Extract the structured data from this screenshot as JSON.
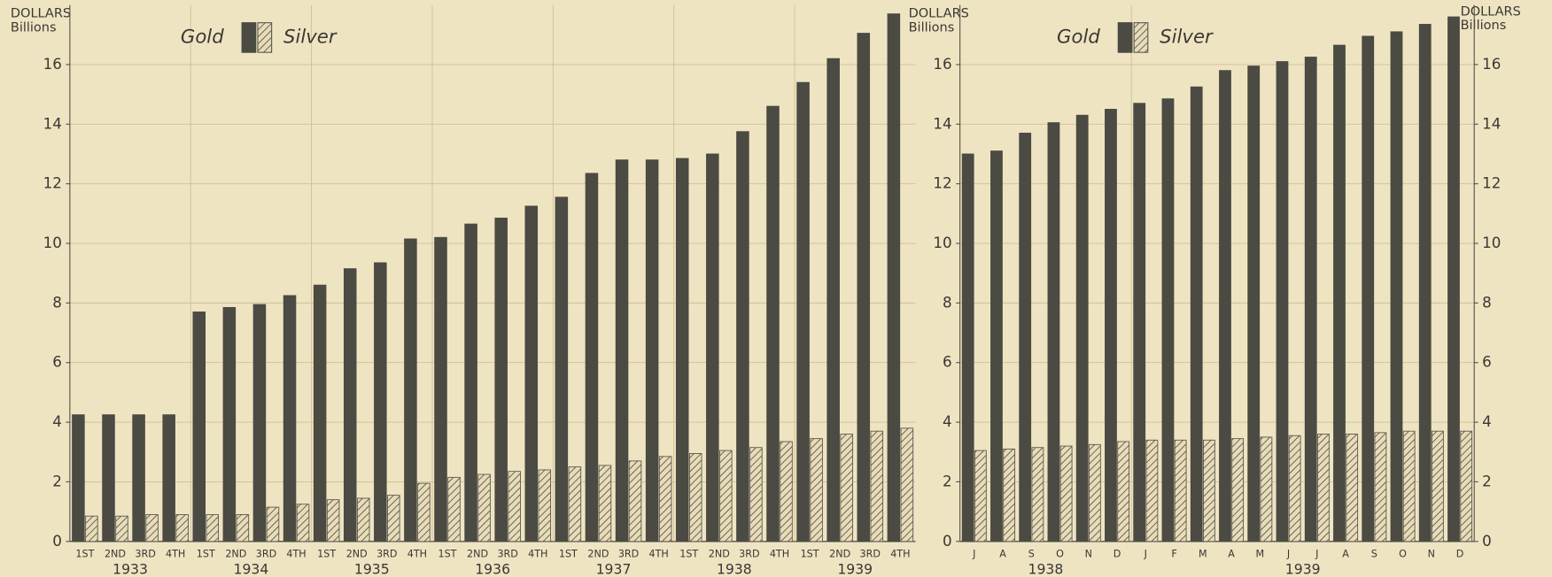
{
  "chart_data": [
    {
      "type": "bar",
      "y_label": [
        "DOLLARS",
        "Billions"
      ],
      "ylim": [
        0,
        18
      ],
      "yticks": [
        0,
        2,
        4,
        6,
        8,
        10,
        12,
        14,
        16
      ],
      "grid": true,
      "groups": [
        {
          "label": "1933",
          "categories": [
            "1ST",
            "2ND",
            "3RD",
            "4TH"
          ]
        },
        {
          "label": "1934",
          "categories": [
            "1ST",
            "2ND",
            "3RD",
            "4TH"
          ]
        },
        {
          "label": "1935",
          "categories": [
            "1ST",
            "2ND",
            "3RD",
            "4TH"
          ]
        },
        {
          "label": "1936",
          "categories": [
            "1ST",
            "2ND",
            "3RD",
            "4TH"
          ]
        },
        {
          "label": "1937",
          "categories": [
            "1ST",
            "2ND",
            "3RD",
            "4TH"
          ]
        },
        {
          "label": "1938",
          "categories": [
            "1ST",
            "2ND",
            "3RD",
            "4TH"
          ]
        },
        {
          "label": "1939",
          "categories": [
            "1ST",
            "2ND",
            "3RD",
            "4TH"
          ]
        }
      ],
      "series": [
        {
          "name": "Gold",
          "color": "#4b4a43",
          "pattern": "solid",
          "values": [
            4.25,
            4.25,
            4.25,
            4.25,
            7.7,
            7.85,
            7.95,
            8.25,
            8.6,
            9.15,
            9.35,
            10.15,
            10.2,
            10.65,
            10.85,
            11.25,
            11.55,
            12.35,
            12.8,
            12.8,
            12.85,
            13.0,
            13.75,
            14.6,
            15.4,
            16.2,
            17.05,
            17.7
          ]
        },
        {
          "name": "Silver",
          "color": "#5a5850",
          "pattern": "hatch",
          "values": [
            0.85,
            0.85,
            0.9,
            0.9,
            0.9,
            0.9,
            1.15,
            1.25,
            1.4,
            1.45,
            1.55,
            1.95,
            2.15,
            2.25,
            2.35,
            2.4,
            2.5,
            2.55,
            2.7,
            2.85,
            2.95,
            3.05,
            3.15,
            3.35,
            3.45,
            3.6,
            3.7,
            3.8
          ]
        }
      ]
    },
    {
      "type": "bar",
      "y_label": [
        "DOLLARS",
        "Billions"
      ],
      "y2_label": [
        "DOLLARS",
        "Billions"
      ],
      "ylim": [
        0,
        18
      ],
      "yticks": [
        0,
        2,
        4,
        6,
        8,
        10,
        12,
        14,
        16
      ],
      "y2lim": [
        0,
        18
      ],
      "y2ticks": [
        0,
        2,
        4,
        6,
        8,
        10,
        12,
        14,
        16
      ],
      "grid": true,
      "groups": [
        {
          "label": "1938",
          "categories": [
            "J",
            "A",
            "S",
            "O",
            "N",
            "D"
          ]
        },
        {
          "label": "1939",
          "categories": [
            "J",
            "F",
            "M",
            "A",
            "M",
            "J",
            "J",
            "A",
            "S",
            "O",
            "N",
            "D"
          ]
        }
      ],
      "series": [
        {
          "name": "Gold",
          "color": "#4b4a43",
          "pattern": "solid",
          "values": [
            13.0,
            13.1,
            13.7,
            14.05,
            14.3,
            14.5,
            14.7,
            14.85,
            15.25,
            15.8,
            15.95,
            16.1,
            16.25,
            16.65,
            16.95,
            17.1,
            17.35,
            17.6
          ]
        },
        {
          "name": "Silver",
          "color": "#5a5850",
          "pattern": "hatch",
          "values": [
            3.05,
            3.1,
            3.15,
            3.2,
            3.25,
            3.35,
            3.4,
            3.4,
            3.4,
            3.45,
            3.5,
            3.55,
            3.6,
            3.6,
            3.65,
            3.7,
            3.7,
            3.7
          ]
        }
      ]
    }
  ]
}
